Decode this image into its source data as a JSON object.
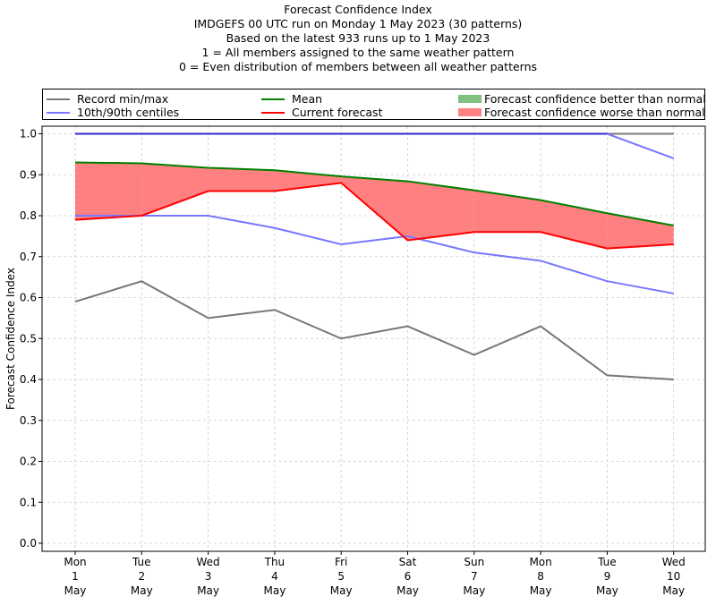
{
  "chart_data": {
    "type": "line",
    "title": "Forecast Confidence Index",
    "subtitle_lines": [
      "IMDGEFS 00 UTC run on Monday 1 May 2023 (30 patterns)",
      "Based on the latest 933 runs up to 1 May 2023",
      "1 = All members assigned to the same weather pattern",
      "0 = Even distribution of members between all weather patterns"
    ],
    "xlabel": "",
    "ylabel": "Forecast Confidence Index",
    "ylim": [
      0.0,
      1.0
    ],
    "yticks": [
      "0.0",
      "0.1",
      "0.2",
      "0.3",
      "0.4",
      "0.5",
      "0.6",
      "0.7",
      "0.8",
      "0.9",
      "1.0"
    ],
    "grid": true,
    "legend_position": "top",
    "categories": [
      [
        "Mon",
        "1",
        "May"
      ],
      [
        "Tue",
        "2",
        "May"
      ],
      [
        "Wed",
        "3",
        "May"
      ],
      [
        "Thu",
        "4",
        "May"
      ],
      [
        "Fri",
        "5",
        "May"
      ],
      [
        "Sat",
        "6",
        "May"
      ],
      [
        "Sun",
        "7",
        "May"
      ],
      [
        "Mon",
        "8",
        "May"
      ],
      [
        "Tue",
        "9",
        "May"
      ],
      [
        "Wed",
        "10",
        "May"
      ]
    ],
    "series": [
      {
        "name": "Record max",
        "legend": "Record min/max",
        "color": "#777777",
        "values": [
          1.0,
          1.0,
          1.0,
          1.0,
          1.0,
          1.0,
          1.0,
          1.0,
          1.0,
          1.0
        ]
      },
      {
        "name": "Record min",
        "legend": "Record min/max",
        "color": "#777777",
        "values": [
          0.59,
          0.64,
          0.55,
          0.57,
          0.5,
          0.53,
          0.46,
          0.53,
          0.41,
          0.4
        ]
      },
      {
        "name": "90th centile",
        "legend": "10th/90th centiles",
        "color": "#7777ff",
        "values": [
          1.0,
          1.0,
          1.0,
          1.0,
          1.0,
          1.0,
          1.0,
          1.0,
          1.0,
          0.94
        ]
      },
      {
        "name": "10th centile",
        "legend": "10th/90th centiles",
        "color": "#7777ff",
        "values": [
          0.8,
          0.8,
          0.8,
          0.77,
          0.73,
          0.75,
          0.71,
          0.69,
          0.64,
          0.61
        ]
      },
      {
        "name": "Mean",
        "legend": "Mean",
        "color": "#008000",
        "values": [
          0.93,
          0.928,
          0.917,
          0.911,
          0.896,
          0.884,
          0.862,
          0.838,
          0.806,
          0.776
        ]
      },
      {
        "name": "Current forecast",
        "legend": "Current forecast",
        "color": "#ff0000",
        "values": [
          0.79,
          0.8,
          0.86,
          0.86,
          0.88,
          0.74,
          0.76,
          0.76,
          0.72,
          0.73
        ]
      }
    ],
    "fills": [
      {
        "name": "Forecast confidence better than normal",
        "color": "#80c080",
        "between": [
          "Current forecast",
          "Mean"
        ],
        "where": "forecast above mean"
      },
      {
        "name": "Forecast confidence worse than normal",
        "color": "#ff8080",
        "between": [
          "Current forecast",
          "Mean"
        ],
        "where": "forecast below mean"
      }
    ],
    "legend_entries": [
      {
        "label": "Record min/max",
        "kind": "line",
        "color": "#777777"
      },
      {
        "label": "10th/90th centiles",
        "kind": "line",
        "color": "#7777ff"
      },
      {
        "label": "Mean",
        "kind": "line",
        "color": "#008000"
      },
      {
        "label": "Current forecast",
        "kind": "line",
        "color": "#ff0000"
      },
      {
        "label": "Forecast confidence better than normal",
        "kind": "patch",
        "color": "#80c080"
      },
      {
        "label": "Forecast confidence worse than normal",
        "kind": "patch",
        "color": "#ff8080"
      }
    ]
  }
}
